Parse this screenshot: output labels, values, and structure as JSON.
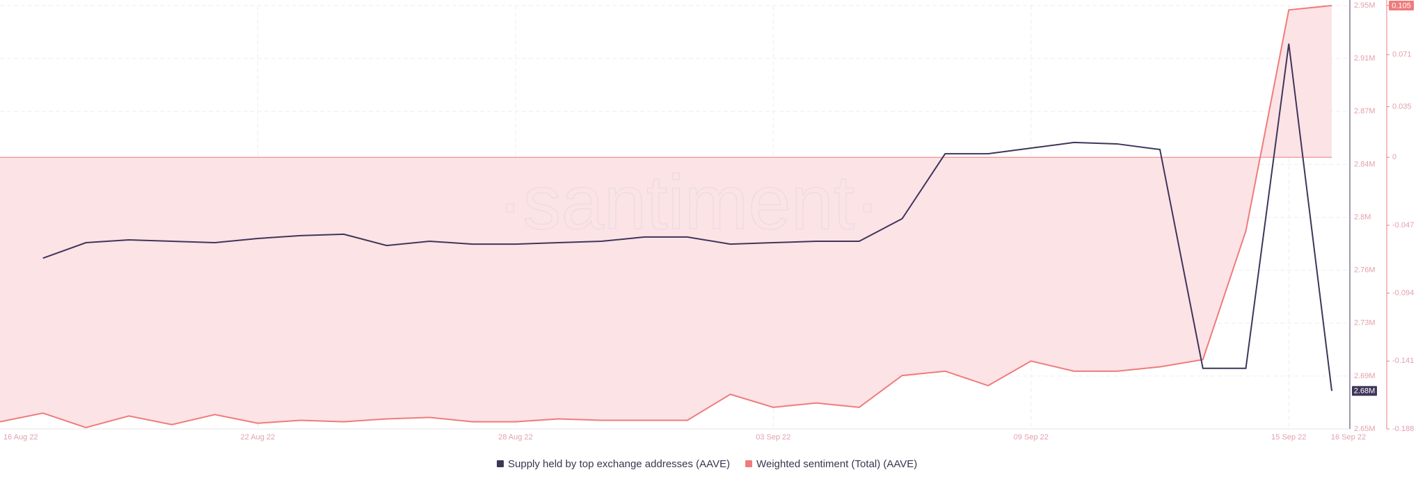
{
  "chart_data": {
    "type": "line",
    "watermark": "·santiment·",
    "categories": [
      "16 Aug 22",
      null,
      null,
      null,
      null,
      null,
      "22 Aug 22",
      null,
      null,
      null,
      null,
      null,
      "28 Aug 22",
      null,
      null,
      null,
      null,
      null,
      "03 Sep 22",
      null,
      null,
      null,
      null,
      null,
      "09 Sep 22",
      null,
      null,
      null,
      null,
      null,
      "15 Sep 22",
      "16 Sep 22"
    ],
    "series": [
      {
        "name": "Supply held by top exchange addresses (AAVE)",
        "color": "#3f3559",
        "axis": "y",
        "last_label": "2.68M",
        "values": [
          null,
          2771000,
          2782000,
          2784000,
          2783000,
          2782000,
          2785000,
          2787000,
          2788000,
          2780000,
          2783000,
          2781000,
          2781000,
          2782000,
          2783000,
          2786000,
          2786000,
          2781000,
          2782000,
          2783000,
          2783000,
          2799000,
          2845000,
          2845000,
          2849000,
          2853000,
          2852000,
          2848000,
          2693000,
          2693000,
          2923000,
          2677000
        ]
      },
      {
        "name": "Weighted sentiment (Total) (AAVE)",
        "color": "#f07b7b",
        "axis": "y2",
        "fill": "#fbe3e6",
        "last_label": "0.105",
        "values": [
          -0.183,
          -0.177,
          -0.187,
          -0.179,
          -0.185,
          -0.178,
          -0.184,
          -0.182,
          -0.183,
          -0.181,
          -0.18,
          -0.183,
          -0.183,
          -0.181,
          -0.182,
          -0.182,
          -0.182,
          -0.164,
          -0.173,
          -0.17,
          -0.173,
          -0.151,
          -0.148,
          -0.158,
          -0.141,
          -0.148,
          -0.148,
          -0.145,
          -0.14,
          -0.051,
          0.102,
          0.105
        ]
      }
    ],
    "ylim": [
      2650000,
      2950000
    ],
    "yticks": [
      {
        "value": 2650000,
        "label": "2.65M"
      },
      {
        "value": 2687500,
        "label": "2.69M"
      },
      {
        "value": 2725000,
        "label": "2.73M"
      },
      {
        "value": 2762500,
        "label": "2.76M"
      },
      {
        "value": 2800000,
        "label": "2.8M"
      },
      {
        "value": 2837500,
        "label": "2.84M"
      },
      {
        "value": 2875000,
        "label": "2.87M"
      },
      {
        "value": 2912500,
        "label": "2.91M"
      },
      {
        "value": 2950000,
        "label": "2.95M"
      }
    ],
    "y2lim": [
      -0.188,
      0.105
    ],
    "y2ticks": [
      -0.188,
      -0.141,
      -0.094,
      -0.047,
      0,
      0.035,
      0.071,
      0.105
    ],
    "grid": true
  }
}
